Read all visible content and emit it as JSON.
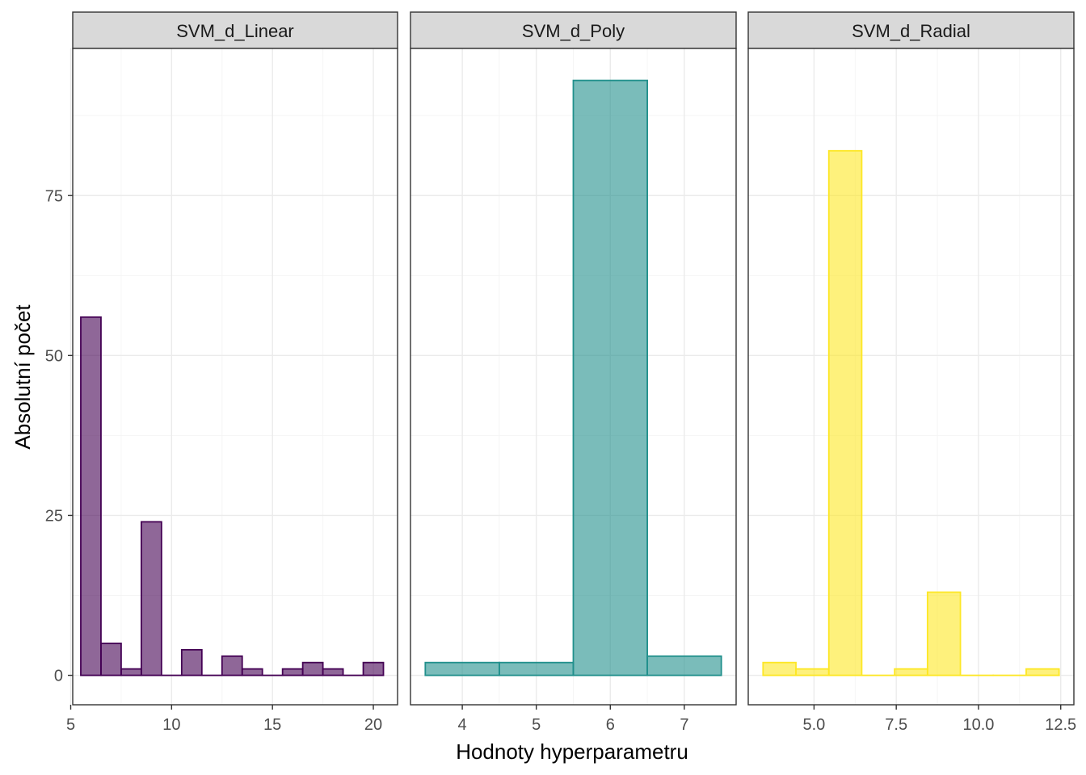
{
  "chart_data": {
    "type": "histogram",
    "xlabel": "Hodnoty hyperparametru",
    "ylabel": "Absolutní počet",
    "ylim": [
      -4.6,
      98
    ],
    "y_ticks": [
      0,
      25,
      50,
      75
    ],
    "panels": [
      {
        "title": "SVM_d_Linear",
        "fill": "#440154",
        "stroke": "#440154",
        "xlim": [
          5.1,
          21.2
        ],
        "x_ticks": [
          5,
          10,
          15,
          20
        ],
        "x_tick_labels": [
          "5",
          "10",
          "15",
          "20"
        ],
        "bins": [
          {
            "x0": 5.5,
            "x1": 6.5,
            "count": 56
          },
          {
            "x0": 6.5,
            "x1": 7.5,
            "count": 5
          },
          {
            "x0": 7.5,
            "x1": 8.5,
            "count": 1
          },
          {
            "x0": 8.5,
            "x1": 9.5,
            "count": 24
          },
          {
            "x0": 9.5,
            "x1": 10.5,
            "count": 0
          },
          {
            "x0": 10.5,
            "x1": 11.5,
            "count": 4
          },
          {
            "x0": 11.5,
            "x1": 12.5,
            "count": 0
          },
          {
            "x0": 12.5,
            "x1": 13.5,
            "count": 3
          },
          {
            "x0": 13.5,
            "x1": 14.5,
            "count": 1
          },
          {
            "x0": 14.5,
            "x1": 15.5,
            "count": 0
          },
          {
            "x0": 15.5,
            "x1": 16.5,
            "count": 1
          },
          {
            "x0": 16.5,
            "x1": 17.5,
            "count": 2
          },
          {
            "x0": 17.5,
            "x1": 18.5,
            "count": 1
          },
          {
            "x0": 18.5,
            "x1": 19.5,
            "count": 0
          },
          {
            "x0": 19.5,
            "x1": 20.5,
            "count": 2
          }
        ]
      },
      {
        "title": "SVM_d_Poly",
        "fill": "#21908C",
        "stroke": "#21908C",
        "xlim": [
          3.3,
          7.7
        ],
        "x_ticks": [
          4,
          5,
          6,
          7
        ],
        "x_tick_labels": [
          "4",
          "5",
          "6",
          "7"
        ],
        "bins": [
          {
            "x0": 3.5,
            "x1": 4.5,
            "count": 2
          },
          {
            "x0": 4.5,
            "x1": 5.5,
            "count": 2
          },
          {
            "x0": 5.5,
            "x1": 6.5,
            "count": 93
          },
          {
            "x0": 6.5,
            "x1": 7.5,
            "count": 3
          }
        ]
      },
      {
        "title": "SVM_d_Radial",
        "fill": "#FDE725",
        "stroke": "#FDE725",
        "xlim": [
          3.0,
          12.9
        ],
        "x_ticks": [
          5.0,
          7.5,
          10.0,
          12.5
        ],
        "x_tick_labels": [
          "5.0",
          "7.5",
          "10.0",
          "12.5"
        ],
        "bins": [
          {
            "x0": 3.45,
            "x1": 4.45,
            "count": 2
          },
          {
            "x0": 4.45,
            "x1": 5.45,
            "count": 1
          },
          {
            "x0": 5.45,
            "x1": 6.45,
            "count": 82
          },
          {
            "x0": 6.45,
            "x1": 7.45,
            "count": 0
          },
          {
            "x0": 7.45,
            "x1": 8.45,
            "count": 1
          },
          {
            "x0": 8.45,
            "x1": 9.45,
            "count": 13
          },
          {
            "x0": 9.45,
            "x1": 10.45,
            "count": 0
          },
          {
            "x0": 10.45,
            "x1": 11.45,
            "count": 0
          },
          {
            "x0": 11.45,
            "x1": 12.45,
            "count": 1
          }
        ]
      }
    ]
  }
}
